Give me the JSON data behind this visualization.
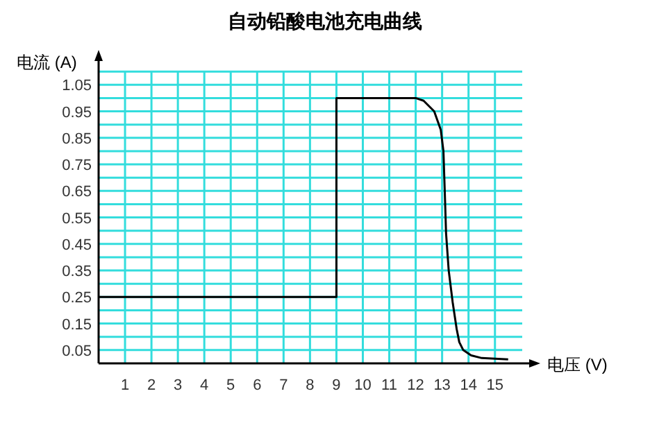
{
  "chart_data": {
    "type": "line",
    "title": "自动铅酸电池充电曲线",
    "xlabel": "电压 (V)",
    "ylabel": "电流 (A)",
    "x": [
      0,
      9,
      9,
      12,
      12.3,
      12.7,
      12.95,
      13.05,
      13.1,
      13.15,
      13.25,
      13.4,
      13.55,
      13.65,
      13.8,
      14.1,
      14.5,
      15.5
    ],
    "series": [
      {
        "color": "#000000",
        "values": [
          0.25,
          0.25,
          1.0,
          1.0,
          0.99,
          0.95,
          0.88,
          0.8,
          0.65,
          0.49,
          0.35,
          0.23,
          0.13,
          0.08,
          0.05,
          0.03,
          0.02,
          0.015
        ]
      }
    ],
    "xlim": [
      0,
      16.4
    ],
    "ylim": [
      0,
      1.15
    ],
    "xticks": [
      1,
      2,
      3,
      4,
      5,
      6,
      7,
      8,
      9,
      10,
      11,
      12,
      13,
      14,
      15
    ],
    "yticks": [
      {
        "value": 0.05,
        "label": "0.05"
      },
      {
        "value": 0.1,
        "label": null
      },
      {
        "value": 0.15,
        "label": "0.15"
      },
      {
        "value": 0.2,
        "label": null
      },
      {
        "value": 0.25,
        "label": "0.25"
      },
      {
        "value": 0.3,
        "label": null
      },
      {
        "value": 0.35,
        "label": "0.35"
      },
      {
        "value": 0.4,
        "label": null
      },
      {
        "value": 0.45,
        "label": "0.45"
      },
      {
        "value": 0.5,
        "label": null
      },
      {
        "value": 0.55,
        "label": "0.55"
      },
      {
        "value": 0.6,
        "label": null
      },
      {
        "value": 0.65,
        "label": "0.65"
      },
      {
        "value": 0.7,
        "label": null
      },
      {
        "value": 0.75,
        "label": "0.75"
      },
      {
        "value": 0.8,
        "label": null
      },
      {
        "value": 0.85,
        "label": "0.85"
      },
      {
        "value": 0.9,
        "label": null
      },
      {
        "value": 0.95,
        "label": "0.95"
      },
      {
        "value": 1.0,
        "label": null
      },
      {
        "value": 1.05,
        "label": "1.05"
      },
      {
        "value": 1.1,
        "label": null
      }
    ],
    "grid": true,
    "marker": "none",
    "line_style": "solid"
  }
}
